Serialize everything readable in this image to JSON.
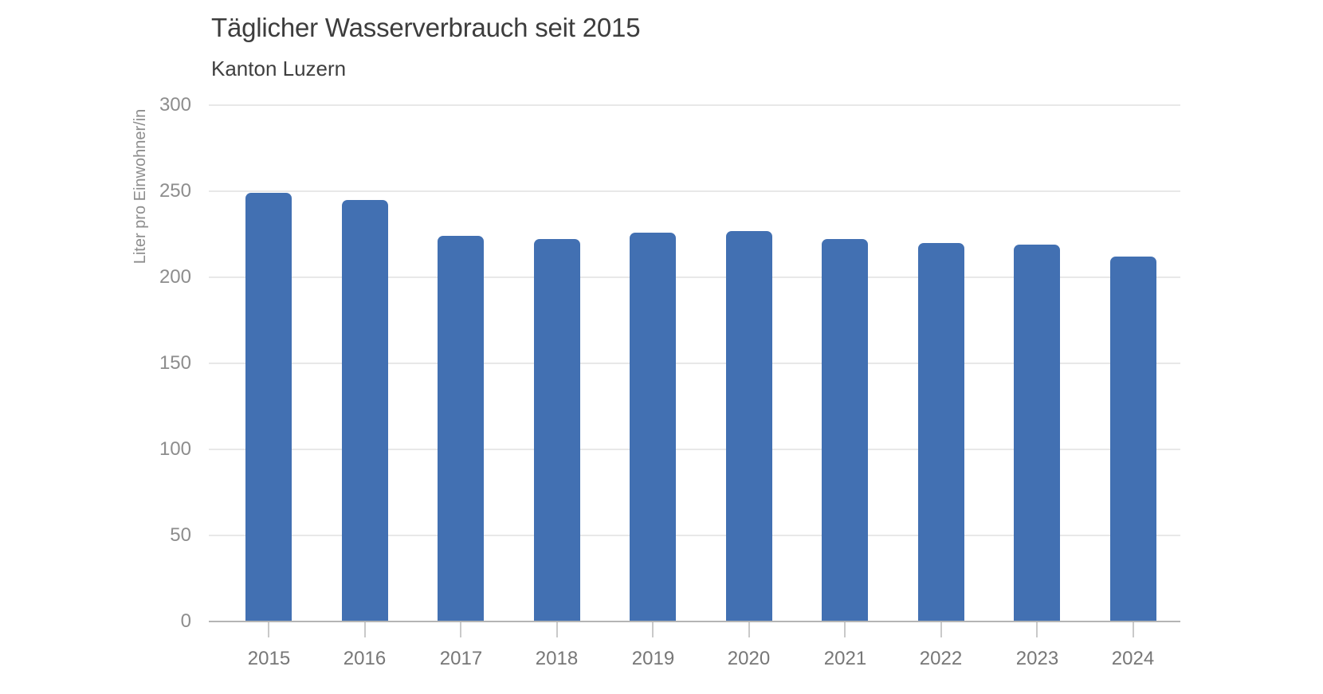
{
  "header": {
    "title": "Täglicher Wasserverbrauch seit 2015",
    "subtitle": "Kanton Luzern"
  },
  "colors": {
    "bar": "#4270b2",
    "gridline": "#e8e8e8",
    "axis_line": "#b4b4b4",
    "tick_mark": "#c9c9c9",
    "title_text": "#3d3d3d",
    "axis_text": "#8d8d8d",
    "category_text": "#777777"
  },
  "chart_data": {
    "type": "bar",
    "title": "Täglicher Wasserverbrauch seit 2015",
    "subtitle": "Kanton Luzern",
    "categories": [
      "2015",
      "2016",
      "2017",
      "2018",
      "2019",
      "2020",
      "2021",
      "2022",
      "2023",
      "2024"
    ],
    "values": [
      249,
      245,
      224,
      222,
      226,
      227,
      222,
      220,
      219,
      212
    ],
    "series_name": "Liter pro Einwohner/in",
    "xlabel": "",
    "ylabel": "Liter pro Einwohner/in",
    "ylim": [
      0,
      300
    ],
    "yticks": [
      0,
      50,
      100,
      150,
      200,
      250,
      300
    ],
    "grid": true,
    "legend": "none",
    "bar_color": "#4270b2"
  }
}
